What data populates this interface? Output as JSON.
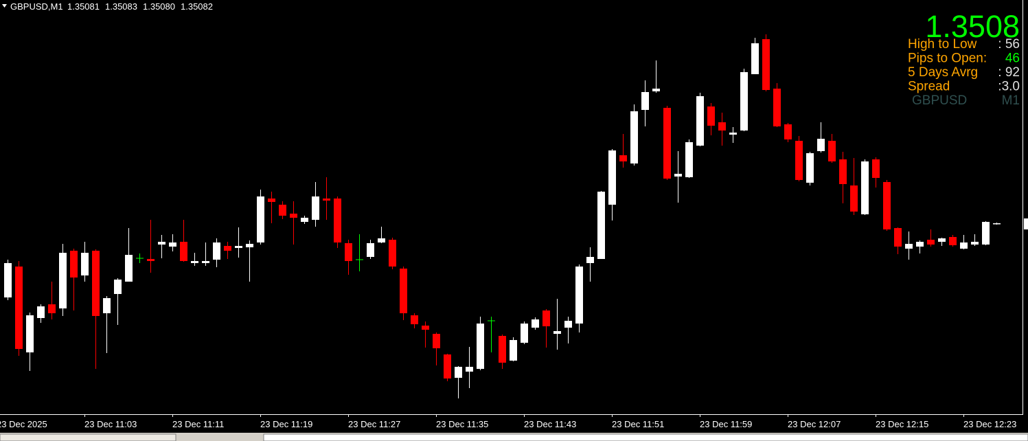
{
  "header": {
    "symbol": "GBPUSD,M1",
    "ohlc": [
      "1.35081",
      "1.35083",
      "1.35080",
      "1.35082"
    ]
  },
  "info": {
    "price": "1.3508",
    "price_color": "#00ff00",
    "rows": [
      {
        "label": "High to Low",
        "value": ": 56",
        "label_color": "#ffa500",
        "value_color": "#e0e0e0"
      },
      {
        "label": "Pips to Open:",
        "value": "46",
        "label_color": "#ffa500",
        "value_color": "#00ff00"
      },
      {
        "label": "5 Days Avrg",
        "value": ": 92",
        "label_color": "#ffa500",
        "value_color": "#e0e0e0"
      },
      {
        "label": "Spread",
        "value": ":3.0",
        "label_color": "#ffa500",
        "value_color": "#e0e0e0"
      },
      {
        "label": "GBPUSD",
        "value": "M1",
        "label_color": "#2f4f4f",
        "value_color": "#2f4f4f"
      }
    ]
  },
  "chart_data": {
    "type": "candlestick",
    "ylim": [
      1.34804,
      1.35407
    ],
    "up_color": "#ffffff",
    "down_color": "#ff0000",
    "doji_color": "#00ff00",
    "categories": [
      "23 Dec 2025",
      null,
      null,
      null,
      null,
      null,
      null,
      null,
      "23 Dec 11:03",
      null,
      null,
      null,
      null,
      null,
      null,
      null,
      "23 Dec 11:11",
      null,
      null,
      null,
      null,
      null,
      null,
      null,
      "23 Dec 11:19",
      null,
      null,
      null,
      null,
      null,
      null,
      null,
      "23 Dec 11:27",
      null,
      null,
      null,
      null,
      null,
      null,
      null,
      "23 Dec 11:35",
      null,
      null,
      null,
      null,
      null,
      null,
      null,
      "23 Dec 11:43",
      null,
      null,
      null,
      null,
      null,
      null,
      null,
      "23 Dec 11:51",
      null,
      null,
      null,
      null,
      null,
      null,
      null,
      "23 Dec 11:59",
      null,
      null,
      null,
      null,
      null,
      null,
      null,
      "23 Dec 12:07",
      null,
      null,
      null,
      null,
      null,
      null,
      null,
      "23 Dec 12:15",
      null,
      null,
      null,
      null,
      null,
      null,
      null,
      "23 Dec 12:23",
      null,
      null,
      null
    ],
    "open": [
      null,
      1.34974,
      1.35019,
      1.34894,
      1.34944,
      1.34964,
      1.34958,
      1.35042,
      1.35006,
      1.35042,
      1.34951,
      1.34979,
      1.34997,
      1.35031,
      1.3503,
      1.35051,
      1.35048,
      1.35055,
      1.35024,
      1.35024,
      1.35029,
      1.35049,
      1.35046,
      1.35047,
      1.35054,
      1.35118,
      1.35109,
      1.35096,
      1.35084,
      1.35087,
      1.35118,
      1.35118,
      1.35053,
      1.35029,
      1.35033,
      1.35054,
      1.35058,
      1.35016,
      1.34948,
      1.34933,
      1.34921,
      1.34891,
      1.34857,
      1.34866,
      1.3487,
      1.3494,
      1.34918,
      1.34882,
      1.34908,
      1.3493,
      1.34955,
      1.34921,
      1.3493,
      1.34936,
      1.35024,
      1.3503,
      1.35109,
      1.35181,
      1.35169,
      1.35247,
      1.35274,
      1.3525,
      1.3515,
      1.35149,
      1.35195,
      1.35252,
      1.35229,
      1.35211,
      1.35217,
      1.35299,
      1.3535,
      1.35278,
      1.35226,
      1.35202,
      1.35141,
      1.35187,
      1.35202,
      1.35175,
      1.35137,
      1.35095,
      1.35175,
      1.35142,
      1.35075,
      1.35045,
      1.35048,
      1.35058,
      1.35055,
      1.35062,
      1.35045,
      1.35051,
      1.35051,
      1.35081
    ],
    "high": [
      null,
      1.35029,
      1.35027,
      1.34952,
      1.34964,
      1.34997,
      1.35052,
      1.35045,
      1.35055,
      1.35044,
      1.34976,
      1.35002,
      1.35075,
      1.35038,
      1.35087,
      1.35065,
      1.35066,
      1.35087,
      1.35039,
      1.35054,
      1.3506,
      1.35055,
      1.35076,
      1.35057,
      1.35131,
      1.35128,
      1.35114,
      1.35114,
      1.35093,
      1.35142,
      1.35149,
      1.35121,
      1.35058,
      1.35066,
      1.35058,
      1.35077,
      1.35061,
      1.35019,
      1.34951,
      1.34939,
      1.34923,
      1.34892,
      1.34874,
      1.34902,
      1.34946,
      1.34946,
      1.3492,
      1.34916,
      1.34939,
      1.34945,
      1.34957,
      1.34972,
      1.34946,
      1.35022,
      1.35047,
      1.35129,
      1.3519,
      1.35212,
      1.35255,
      1.3529,
      1.35319,
      1.35253,
      1.35187,
      1.35204,
      1.35272,
      1.35257,
      1.35243,
      1.35222,
      1.35307,
      1.35352,
      1.35357,
      1.35286,
      1.35228,
      1.35209,
      1.35186,
      1.35229,
      1.35212,
      1.35186,
      1.35177,
      1.35175,
      1.35178,
      1.35145,
      1.35076,
      1.3507,
      1.35057,
      1.35073,
      1.35061,
      1.35065,
      1.35065,
      1.35066,
      1.35085,
      1.35083
    ],
    "low": [
      null,
      1.3497,
      1.34889,
      1.34867,
      1.34937,
      1.34942,
      1.34947,
      1.34955,
      1.34997,
      1.3487,
      1.34893,
      1.34934,
      1.34997,
      1.35024,
      1.3501,
      1.35031,
      1.35041,
      1.35026,
      1.3502,
      1.3502,
      1.35018,
      1.3503,
      1.35032,
      1.34997,
      1.35051,
      1.35082,
      1.35088,
      1.35051,
      1.35081,
      1.35077,
      1.35087,
      1.35046,
      1.35007,
      1.35012,
      1.3503,
      1.35053,
      1.35015,
      1.34941,
      1.34929,
      1.34901,
      1.34875,
      1.34852,
      1.34827,
      1.34842,
      1.34868,
      1.34894,
      1.3487,
      1.34881,
      1.34906,
      1.34927,
      1.34901,
      1.34898,
      1.34907,
      1.34923,
      1.34997,
      1.3503,
      1.35086,
      1.35163,
      1.35166,
      1.35223,
      1.35272,
      1.35145,
      1.35112,
      1.35148,
      1.35194,
      1.3521,
      1.35195,
      1.35199,
      1.35216,
      1.35299,
      1.35274,
      1.35222,
      1.352,
      1.35143,
      1.35137,
      1.35185,
      1.3517,
      1.35111,
      1.35094,
      1.35094,
      1.35134,
      1.35071,
      1.35037,
      1.35029,
      1.35038,
      1.35048,
      1.35049,
      1.35048,
      1.35044,
      1.35049,
      1.3505,
      1.3508
    ],
    "close": [
      null,
      1.35024,
      1.34899,
      1.34948,
      1.34961,
      1.34951,
      1.35039,
      1.35003,
      1.35039,
      1.34947,
      1.34973,
      1.35,
      1.35036,
      1.35031,
      1.35027,
      1.35055,
      1.35054,
      1.35027,
      1.35027,
      1.35027,
      1.35054,
      1.35042,
      1.35049,
      1.35052,
      1.35121,
      1.35113,
      1.35093,
      1.3509,
      1.3509,
      1.35121,
      1.35115,
      1.35054,
      1.35027,
      1.35029,
      1.35053,
      1.3506,
      1.35019,
      1.34951,
      1.34935,
      1.34927,
      1.349,
      1.34856,
      1.34873,
      1.34873,
      1.34936,
      1.3494,
      1.34879,
      1.34912,
      1.34936,
      1.34942,
      1.34932,
      1.34925,
      1.3494,
      1.35019,
      1.35033,
      1.35128,
      1.35188,
      1.35172,
      1.35245,
      1.35273,
      1.35278,
      1.35147,
      1.35154,
      1.352,
      1.35267,
      1.35224,
      1.35217,
      1.35214,
      1.35302,
      1.35344,
      1.35276,
      1.35223,
      1.35204,
      1.35145,
      1.35184,
      1.35205,
      1.35172,
      1.35139,
      1.35099,
      1.35172,
      1.35148,
      1.35073,
      1.35048,
      1.35052,
      1.35055,
      1.35051,
      1.3506,
      1.3505,
      1.35054,
      1.35055,
      1.35084,
      1.35082
    ]
  }
}
